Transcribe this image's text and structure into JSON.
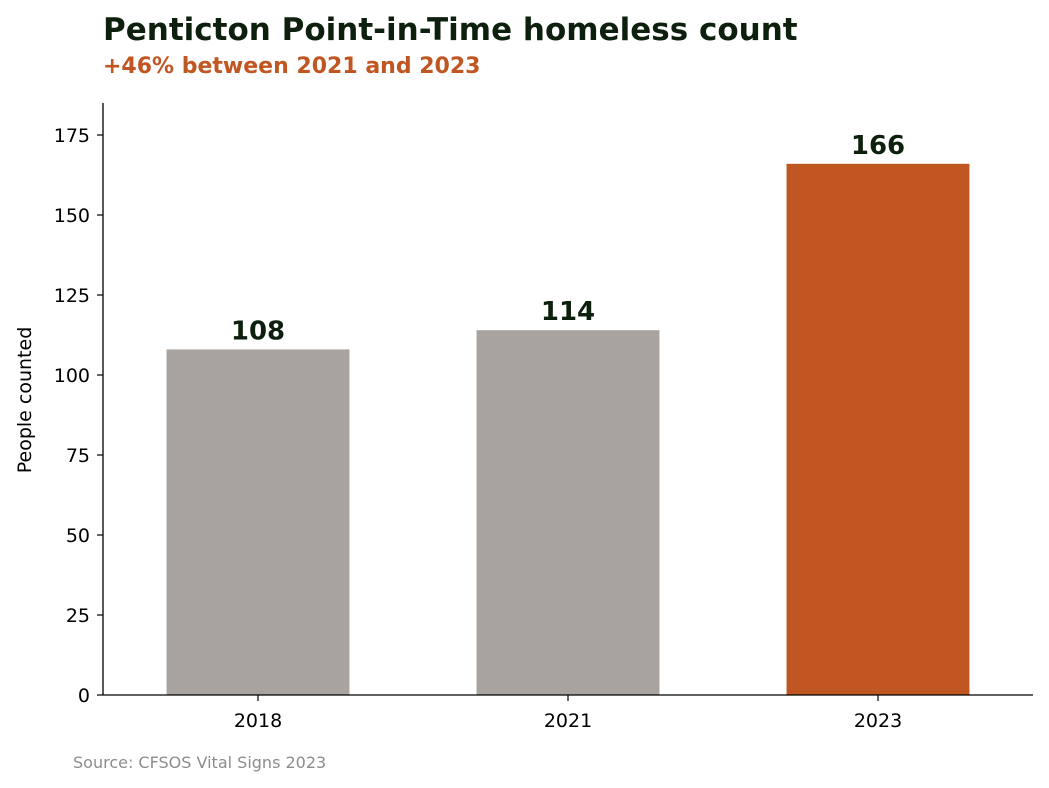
{
  "title": "Penticton Point-in-Time homeless count",
  "subtitle": "+46% between 2021 and 2023",
  "source": "Source: CFSOS Vital Signs 2023",
  "colors": {
    "base_bar": "#a8a39e",
    "highlight_bar": "#c05621",
    "title": "#0d1f0d",
    "value_label": "#0d1f0d",
    "subtitle": "#c05621",
    "source": "#8c8c8c"
  },
  "chart_data": {
    "type": "bar",
    "categories": [
      "2018",
      "2021",
      "2023"
    ],
    "values": [
      108,
      114,
      166
    ],
    "highlight": [
      "2023"
    ],
    "data_labels": [
      "108",
      "114",
      "166"
    ],
    "title": "Penticton Point-in-Time homeless count",
    "subtitle": "+46% between 2021 and 2023",
    "xlabel": "",
    "ylabel": "People counted",
    "ylim": [
      0,
      185
    ],
    "yticks": [
      0,
      25,
      50,
      75,
      100,
      125,
      150,
      175
    ],
    "grid": false,
    "legend": "none"
  }
}
